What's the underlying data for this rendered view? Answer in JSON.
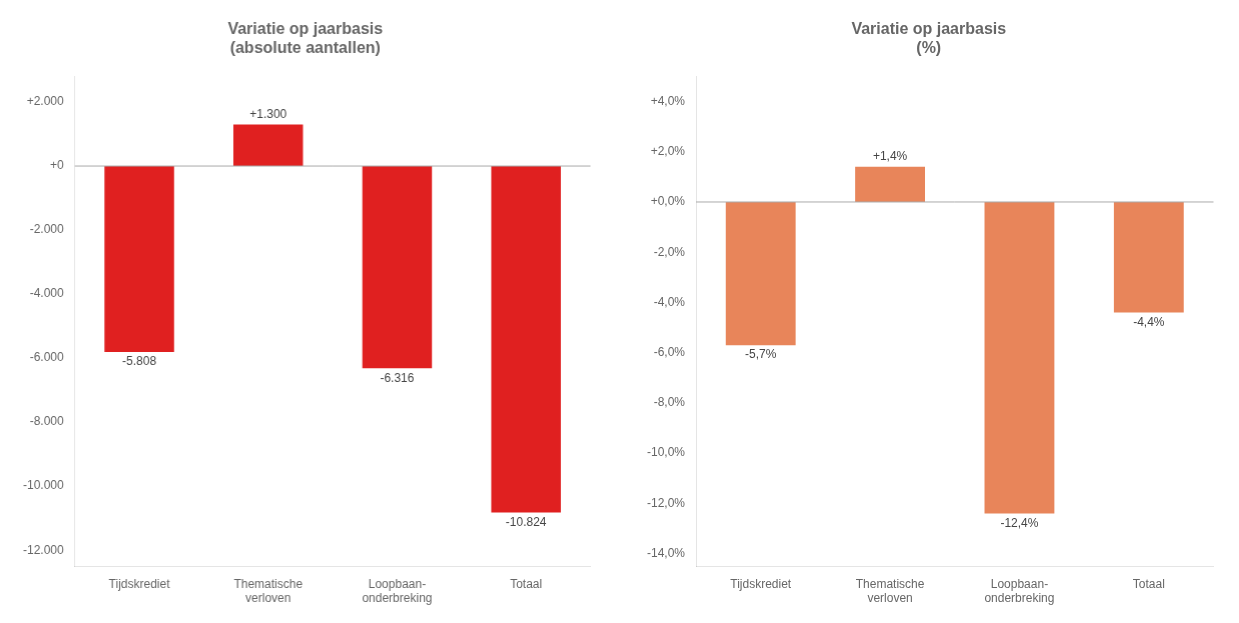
{
  "chart_data": [
    {
      "type": "bar",
      "title": "Variatie op jaarbasis\n(absolute aantallen)",
      "categories": [
        "Tijdskrediet",
        "Thematische\nverloven",
        "Loopbaan-\nonderbreking",
        "Totaal"
      ],
      "values": [
        -5808,
        1300,
        -6316,
        -10824
      ],
      "value_labels": [
        "-5.808",
        "+1.300",
        "-6.316",
        "-10.824"
      ],
      "color": "#e02020",
      "ylim": [
        -12500,
        2800
      ],
      "yticks": [
        {
          "value": -12000,
          "label": "-12.000"
        },
        {
          "value": -10000,
          "label": "-10.000"
        },
        {
          "value": -8000,
          "label": "-8.000"
        },
        {
          "value": -6000,
          "label": "-6.000"
        },
        {
          "value": -4000,
          "label": "-4.000"
        },
        {
          "value": -2000,
          "label": "-2.000"
        },
        {
          "value": 0,
          "label": "+0"
        },
        {
          "value": 2000,
          "label": "+2.000"
        }
      ],
      "grid": false
    },
    {
      "type": "bar",
      "title": "Variatie op jaarbasis\n(%)",
      "categories": [
        "Tijdskrediet",
        "Thematische\nverloven",
        "Loopbaan-\nonderbreking",
        "Totaal"
      ],
      "values": [
        -5.7,
        1.4,
        -12.4,
        -4.4
      ],
      "value_labels": [
        "-5,7%",
        "+1,4%",
        "-12,4%",
        "-4,4%"
      ],
      "color": "#e8855a",
      "ylim": [
        -14.5,
        5.0
      ],
      "yticks": [
        {
          "value": -14,
          "label": "-14,0%"
        },
        {
          "value": -12,
          "label": "-12,0%"
        },
        {
          "value": -10,
          "label": "-10,0%"
        },
        {
          "value": -8,
          "label": "-8,0%"
        },
        {
          "value": -6,
          "label": "-6,0%"
        },
        {
          "value": -4,
          "label": "-4,0%"
        },
        {
          "value": -2,
          "label": "-2,0%"
        },
        {
          "value": 0,
          "label": "+0,0%"
        },
        {
          "value": 2,
          "label": "+2,0%"
        },
        {
          "value": 4,
          "label": "+4,0%"
        }
      ],
      "grid": false
    }
  ]
}
